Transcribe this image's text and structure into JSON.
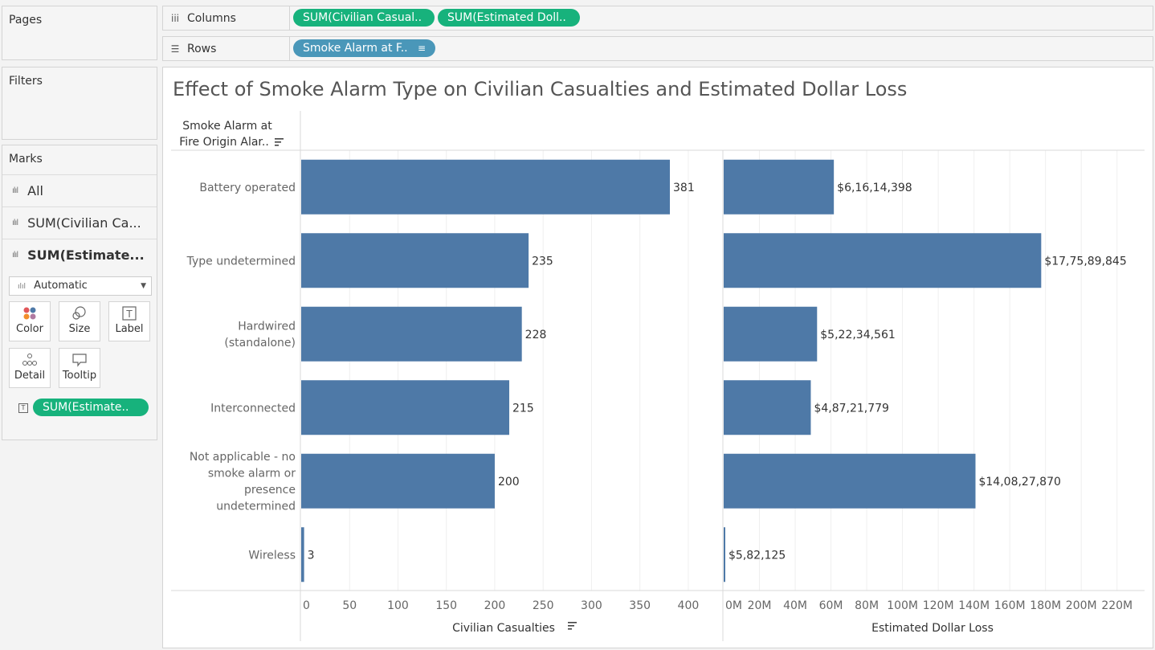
{
  "panels": {
    "pages": "Pages",
    "filters": "Filters",
    "marks": "Marks"
  },
  "shelves": {
    "columns": {
      "label": "Columns",
      "pills": [
        "SUM(Civilian Casual..",
        "SUM(Estimated Doll.."
      ]
    },
    "rows": {
      "label": "Rows",
      "pills": [
        "Smoke Alarm at F.."
      ]
    }
  },
  "marks_card": {
    "rows": [
      "All",
      "SUM(Civilian Ca...",
      "SUM(Estimate..."
    ],
    "mark_type": "Automatic",
    "buttons": [
      "Color",
      "Size",
      "Label",
      "Detail",
      "Tooltip"
    ],
    "label_pill": "SUM(Estimate.."
  },
  "viz": {
    "title": "Effect of Smoke Alarm Type on Civilian Casualties and Estimated Dollar Loss",
    "row_header": [
      "Smoke Alarm at",
      "Fire Origin Alar.."
    ]
  },
  "colors": {
    "bar": "#4e79a7",
    "pill_green": "#17b27c",
    "pill_blue": "#4a97b9"
  },
  "chart_data": {
    "type": "bar",
    "orientation": "horizontal",
    "categories": [
      [
        "Battery operated"
      ],
      [
        "Type undetermined"
      ],
      [
        "Hardwired",
        "(standalone)"
      ],
      [
        "Interconnected"
      ],
      [
        "Not applicable - no",
        "smoke alarm or",
        "presence",
        "undetermined"
      ],
      [
        "Wireless"
      ]
    ],
    "series": [
      {
        "name": "Civilian Casualties",
        "values": [
          381,
          235,
          228,
          215,
          200,
          3
        ],
        "labels": [
          "381",
          "235",
          "228",
          "215",
          "200",
          "3"
        ],
        "xlim": [
          0,
          420
        ],
        "ticks": [
          0,
          50,
          100,
          150,
          200,
          250,
          300,
          350,
          400
        ],
        "tick_labels": [
          "0",
          "50",
          "100",
          "150",
          "200",
          "250",
          "300",
          "350",
          "400"
        ],
        "xlabel": "Civilian Casualties"
      },
      {
        "name": "Estimated Dollar Loss",
        "values": [
          61614398,
          177589845,
          52234561,
          48721779,
          140827870,
          582125
        ],
        "labels": [
          "$6,16,14,398",
          "$17,75,89,845",
          "$5,22,34,561",
          "$4,87,21,779",
          "$14,08,27,870",
          "$5,82,125"
        ],
        "xlim": [
          0,
          230000000
        ],
        "ticks": [
          0,
          20000000,
          40000000,
          60000000,
          80000000,
          100000000,
          120000000,
          140000000,
          160000000,
          180000000,
          200000000,
          220000000
        ],
        "tick_labels": [
          "0M",
          "20M",
          "40M",
          "60M",
          "80M",
          "100M",
          "120M",
          "140M",
          "160M",
          "180M",
          "200M",
          "220M"
        ],
        "xlabel": "Estimated Dollar Loss"
      }
    ]
  }
}
